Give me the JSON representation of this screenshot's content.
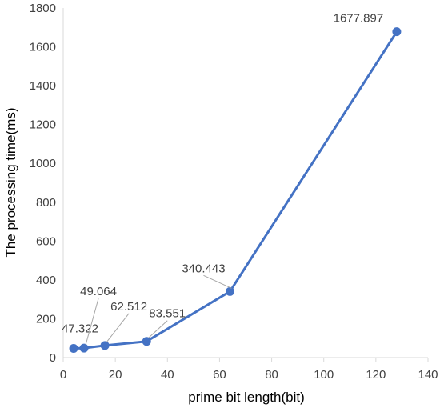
{
  "chart_data": {
    "type": "line",
    "title": "",
    "xlabel": "prime bit length(bit)",
    "ylabel": "The processing time(ms)",
    "xlim": [
      0,
      140
    ],
    "ylim": [
      0,
      1800
    ],
    "x_ticks": [
      0,
      20,
      40,
      60,
      80,
      100,
      120,
      140
    ],
    "y_ticks": [
      0,
      200,
      400,
      600,
      800,
      1000,
      1200,
      1400,
      1600,
      1800
    ],
    "grid": false,
    "legend": "none",
    "series": [
      {
        "x": [
          4,
          8,
          16,
          32,
          64,
          128
        ],
        "y": [
          47.322,
          49.064,
          62.512,
          83.551,
          340.443,
          1677.897
        ],
        "labels": [
          "47.322",
          "49.064",
          "62.512",
          "83.551",
          "340.443",
          "1677.897"
        ],
        "color": "#4472C4"
      }
    ]
  }
}
